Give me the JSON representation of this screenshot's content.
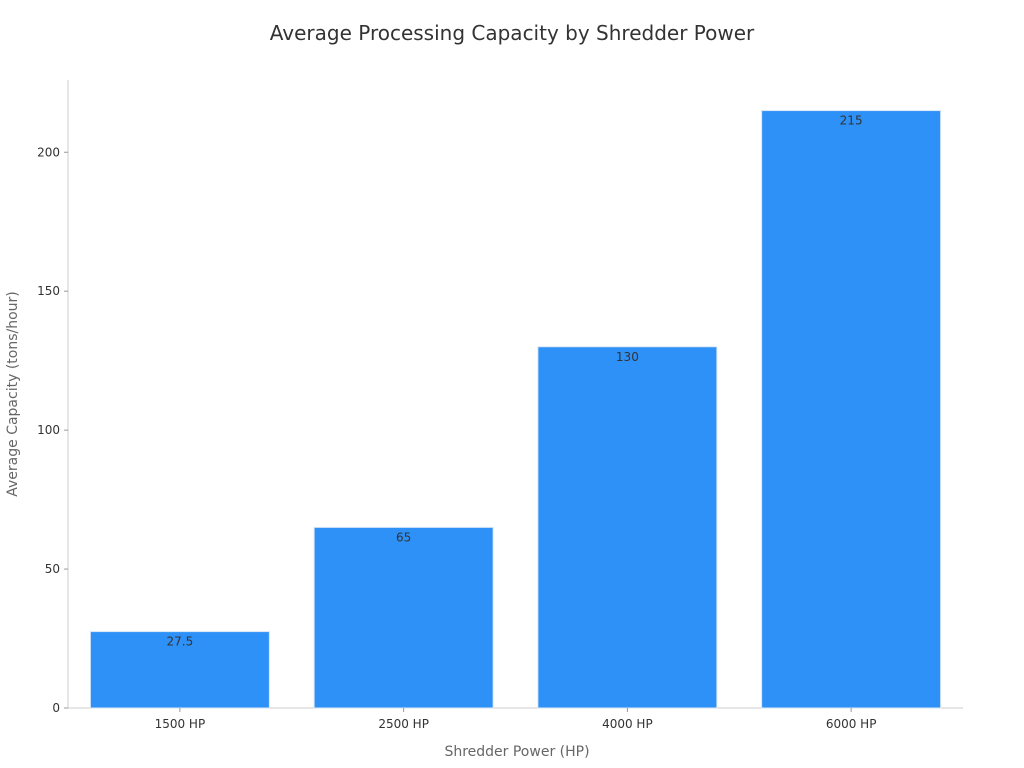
{
  "chart_data": {
    "type": "bar",
    "title": "Average Processing Capacity by Shredder Power",
    "xlabel": "Shredder Power (HP)",
    "ylabel": "Average Capacity (tons/hour)",
    "categories": [
      "1500 HP",
      "2500 HP",
      "4000 HP",
      "6000 HP"
    ],
    "values": [
      27.5,
      65,
      130,
      215
    ],
    "data_labels": [
      "27.5",
      "65",
      "130",
      "215"
    ],
    "ylim": [
      0,
      226
    ],
    "yticks": [
      0,
      50,
      100,
      150,
      200
    ],
    "ytick_labels": [
      "0",
      "50",
      "100",
      "150",
      "200"
    ],
    "grid": false,
    "bar_color": "#2e91f7"
  }
}
